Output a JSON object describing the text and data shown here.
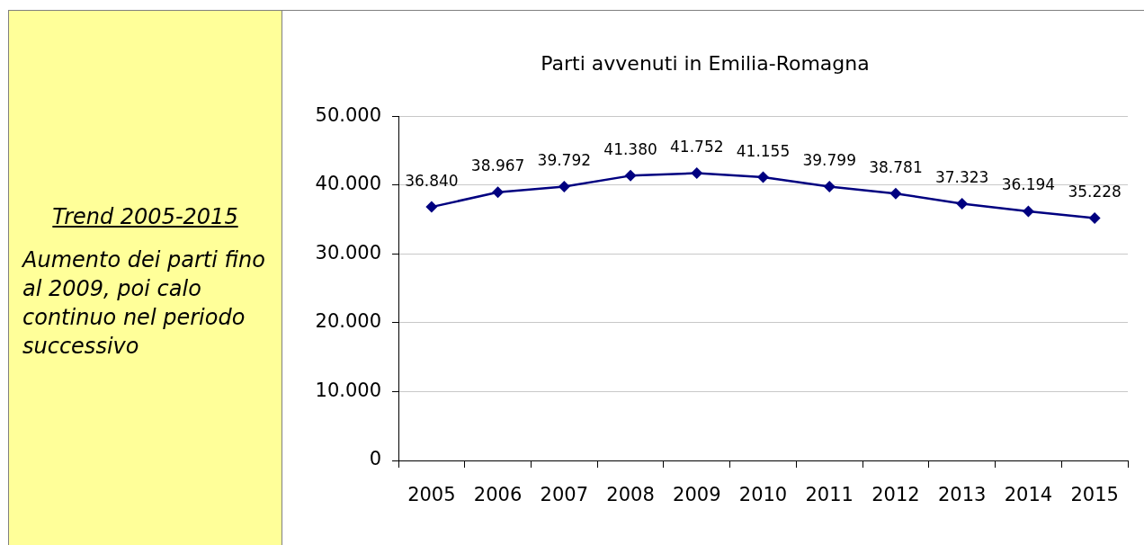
{
  "chart_data": {
    "type": "line",
    "title": "Parti avvenuti in Emilia-Romagna",
    "categories": [
      "2005",
      "2006",
      "2007",
      "2008",
      "2009",
      "2010",
      "2011",
      "2012",
      "2013",
      "2014",
      "2015"
    ],
    "series": [
      {
        "color": "#000080",
        "values": [
          36840,
          38967,
          39792,
          41380,
          41752,
          41155,
          39799,
          38781,
          37323,
          36194,
          35228
        ],
        "value_labels": [
          "36.840",
          "38.967",
          "39.792",
          "41.380",
          "41.752",
          "41.155",
          "39.799",
          "38.781",
          "37.323",
          "36.194",
          "35.228"
        ]
      }
    ],
    "ylim": [
      0,
      50000
    ],
    "yticks": [
      0,
      {
        "value": 10000,
        "label": "10.000"
      },
      {
        "value": 20000,
        "label": "20.000"
      },
      {
        "value": 30000,
        "label": "30.000"
      },
      {
        "value": 40000,
        "label": "40.000"
      },
      {
        "value": 50000,
        "label": "50.000"
      }
    ],
    "grid": "y",
    "marker": "diamond",
    "line_style": "solid",
    "annotations": [
      "Trend 2005-2015",
      "Aumento dei parti fino al 2009, poi calo continuo nel periodo successivo"
    ]
  }
}
